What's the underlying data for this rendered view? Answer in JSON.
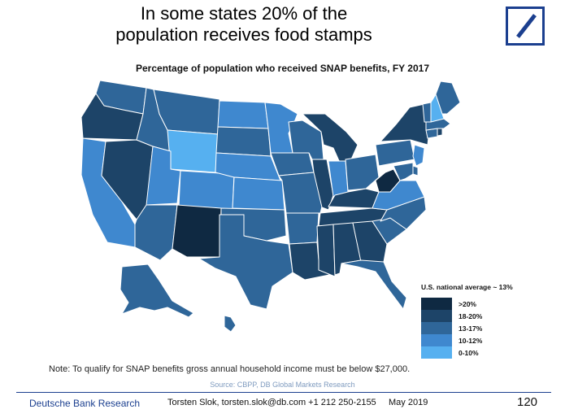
{
  "headline": {
    "line1": "In some states 20% of the",
    "line2": "population receives food stamps"
  },
  "logo": {
    "icon": "deutsche-bank-slash-logo",
    "color": "#1b3f8f"
  },
  "map": {
    "title": "Percentage of population who received SNAP benefits, FY 2017",
    "colors": {
      "gt20": "#0f2942",
      "18-20": "#1d4468",
      "13-17": "#2f6699",
      "10-12": "#3f88cf",
      "0-10": "#56b0f0"
    },
    "state_categories": {
      "WA": "13-17",
      "OR": "18-20",
      "CA": "10-12",
      "NV": "18-20",
      "ID": "13-17",
      "MT": "13-17",
      "WY": "0-10",
      "UT": "10-12",
      "AZ": "13-17",
      "NM": "gt20",
      "CO": "10-12",
      "ND": "10-12",
      "SD": "13-17",
      "NE": "10-12",
      "KS": "10-12",
      "OK": "13-17",
      "TX": "13-17",
      "MN": "10-12",
      "IA": "13-17",
      "MO": "13-17",
      "AR": "13-17",
      "LA": "18-20",
      "WI": "13-17",
      "IL": "18-20",
      "MI": "18-20",
      "IN": "10-12",
      "OH": "13-17",
      "KY": "18-20",
      "TN": "18-20",
      "MS": "18-20",
      "AL": "18-20",
      "GA": "18-20",
      "FL": "13-17",
      "SC": "13-17",
      "NC": "13-17",
      "VA": "10-12",
      "WV": "gt20",
      "PA": "13-17",
      "NY": "18-20",
      "VT": "13-17",
      "NH": "0-10",
      "ME": "13-17",
      "MA": "13-17",
      "CT": "13-17",
      "RI": "18-20",
      "NJ": "10-12",
      "DE": "13-17",
      "MD": "13-17",
      "AK": "13-17",
      "HI": "13-17"
    }
  },
  "legend": {
    "title": "U.S. national average ~ 13%",
    "items": [
      {
        "label": ">20%",
        "color": "#0f2942"
      },
      {
        "label": "18-20%",
        "color": "#1d4468"
      },
      {
        "label": "13-17%",
        "color": "#2f6699"
      },
      {
        "label": "10-12%",
        "color": "#3f88cf"
      },
      {
        "label": "0-10%",
        "color": "#56b0f0"
      }
    ]
  },
  "note": "Note: To qualify for SNAP benefits gross annual household income must be below $27,000.",
  "source": "Source: CBPP, DB Global Markets Research",
  "footer": {
    "brand": "Deutsche Bank Research",
    "author": "Torsten Slok, torsten.slok@db.com  +1 212 250-2155",
    "date": "May 2019",
    "page": "120"
  }
}
